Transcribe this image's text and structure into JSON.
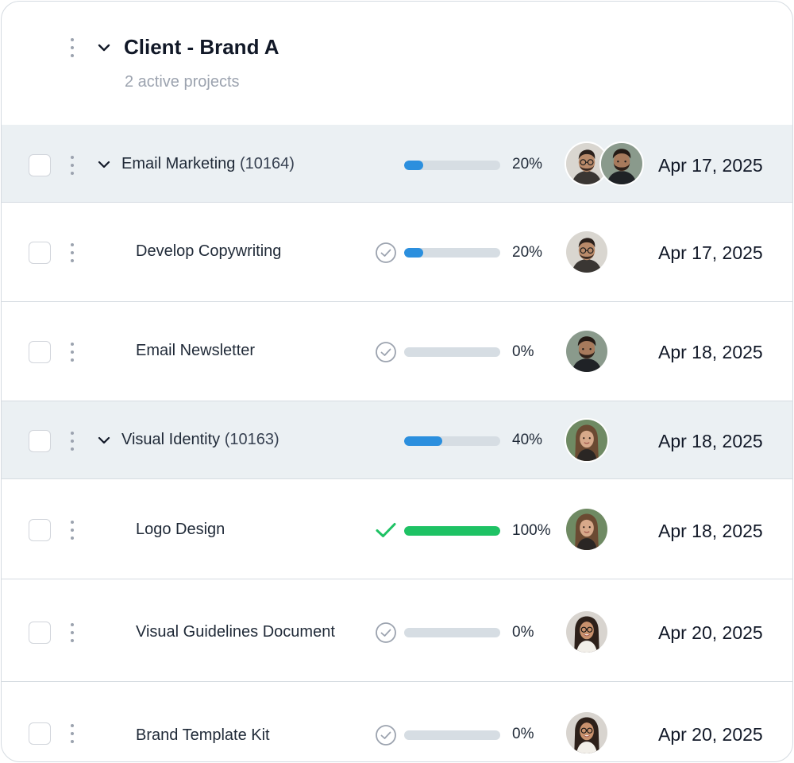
{
  "header": {
    "title": "Client - Brand A",
    "subtitle": "2 active projects"
  },
  "rows": [
    {
      "kind": "group",
      "name": "Email Marketing",
      "code": "(10164)",
      "progress_label": "20%",
      "progress": 0.2,
      "status": "none",
      "avatars": [
        "man-glasses",
        "man-beard"
      ],
      "date": "Apr 17, 2025"
    },
    {
      "kind": "task",
      "name": "Develop Copywriting",
      "progress_label": "20%",
      "progress": 0.2,
      "status": "pending",
      "avatars": [
        "man-glasses"
      ],
      "date": "Apr 17, 2025"
    },
    {
      "kind": "task",
      "name": "Email Newsletter",
      "progress_label": "0%",
      "progress": 0,
      "status": "pending",
      "avatars": [
        "man-beard"
      ],
      "date": "Apr 18, 2025"
    },
    {
      "kind": "group",
      "name": "Visual Identity",
      "code": "(10163)",
      "progress_label": "40%",
      "progress": 0.4,
      "status": "none",
      "avatars": [
        "woman-long-hair"
      ],
      "date": "Apr 18, 2025"
    },
    {
      "kind": "task",
      "name": "Logo Design",
      "progress_label": "100%",
      "progress": 1.0,
      "status": "complete",
      "avatars": [
        "woman-long-hair"
      ],
      "date": "Apr 18, 2025"
    },
    {
      "kind": "task",
      "name": "Visual Guidelines Document",
      "progress_label": "0%",
      "progress": 0,
      "status": "pending",
      "avatars": [
        "woman-glasses"
      ],
      "date": "Apr 20, 2025"
    },
    {
      "kind": "task",
      "name": "Brand Template Kit",
      "progress_label": "0%",
      "progress": 0,
      "status": "pending",
      "avatars": [
        "woman-glasses"
      ],
      "date": "Apr 20, 2025"
    }
  ],
  "colors": {
    "progress_blue": "#2b8fde",
    "progress_green": "#1ec264",
    "track": "#d6dde3",
    "group_bg": "#ebf0f3",
    "check_green": "#1ec264"
  }
}
